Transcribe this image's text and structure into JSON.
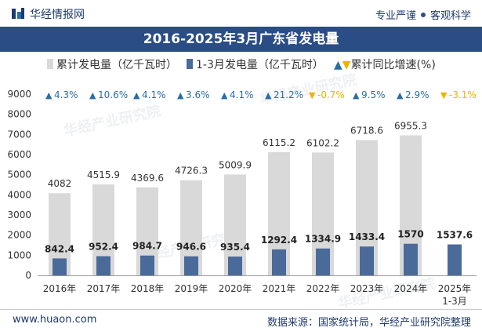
{
  "header": {
    "brand": "华经情报网",
    "tagline_left": "专业严谨",
    "tagline_right": "客观科学"
  },
  "title": "2016-2025年3月广东省发电量",
  "legend": {
    "series1": "累计发电量（亿千瓦时）",
    "series2": "1-3月发电量（亿千瓦时）",
    "growth": "累计同比增速(%)"
  },
  "chart_data": {
    "type": "bar",
    "categories": [
      "2016年",
      "2017年",
      "2018年",
      "2019年",
      "2020年",
      "2021年",
      "2022年",
      "2023年",
      "2024年",
      "2025年\n1-3月"
    ],
    "series": [
      {
        "name": "累计发电量（亿千瓦时）",
        "values": [
          4082,
          4515.9,
          4369.6,
          4726.3,
          5009.9,
          6115.2,
          6102.2,
          6718.6,
          6955.3,
          null
        ]
      },
      {
        "name": "1-3月发电量（亿千瓦时）",
        "values": [
          842.4,
          952.4,
          984.7,
          946.6,
          935.4,
          1292.4,
          1334.9,
          1433.4,
          1570,
          1537.6
        ]
      },
      {
        "name": "累计同比增速(%)",
        "values": [
          4.3,
          10.6,
          4.1,
          3.6,
          4.1,
          21.2,
          -0.7,
          9.5,
          2.9,
          -3.1
        ]
      }
    ],
    "growth_labels": [
      "4.3%",
      "10.6%",
      "4.1%",
      "3.6%",
      "4.1%",
      "21.2%",
      "-0.7%",
      "9.5%",
      "2.9%",
      "-3.1%"
    ],
    "yticks": [
      0,
      1000,
      2000,
      3000,
      4000,
      5000,
      6000,
      7000,
      8000,
      9000
    ],
    "ylim": [
      0,
      9000
    ],
    "colors": {
      "series1": "#d9d9d9",
      "series2": "#4a6a9a",
      "up": "#2a6ea6",
      "down": "#f2b100"
    },
    "grid": false,
    "legend_position": "top"
  },
  "watermark": "华经产业研究院",
  "watermark_url": "www.huaon.com",
  "footer": {
    "url": "www.huaon.com",
    "source": "数据来源：国家统计局，华经产业研究院整理"
  }
}
